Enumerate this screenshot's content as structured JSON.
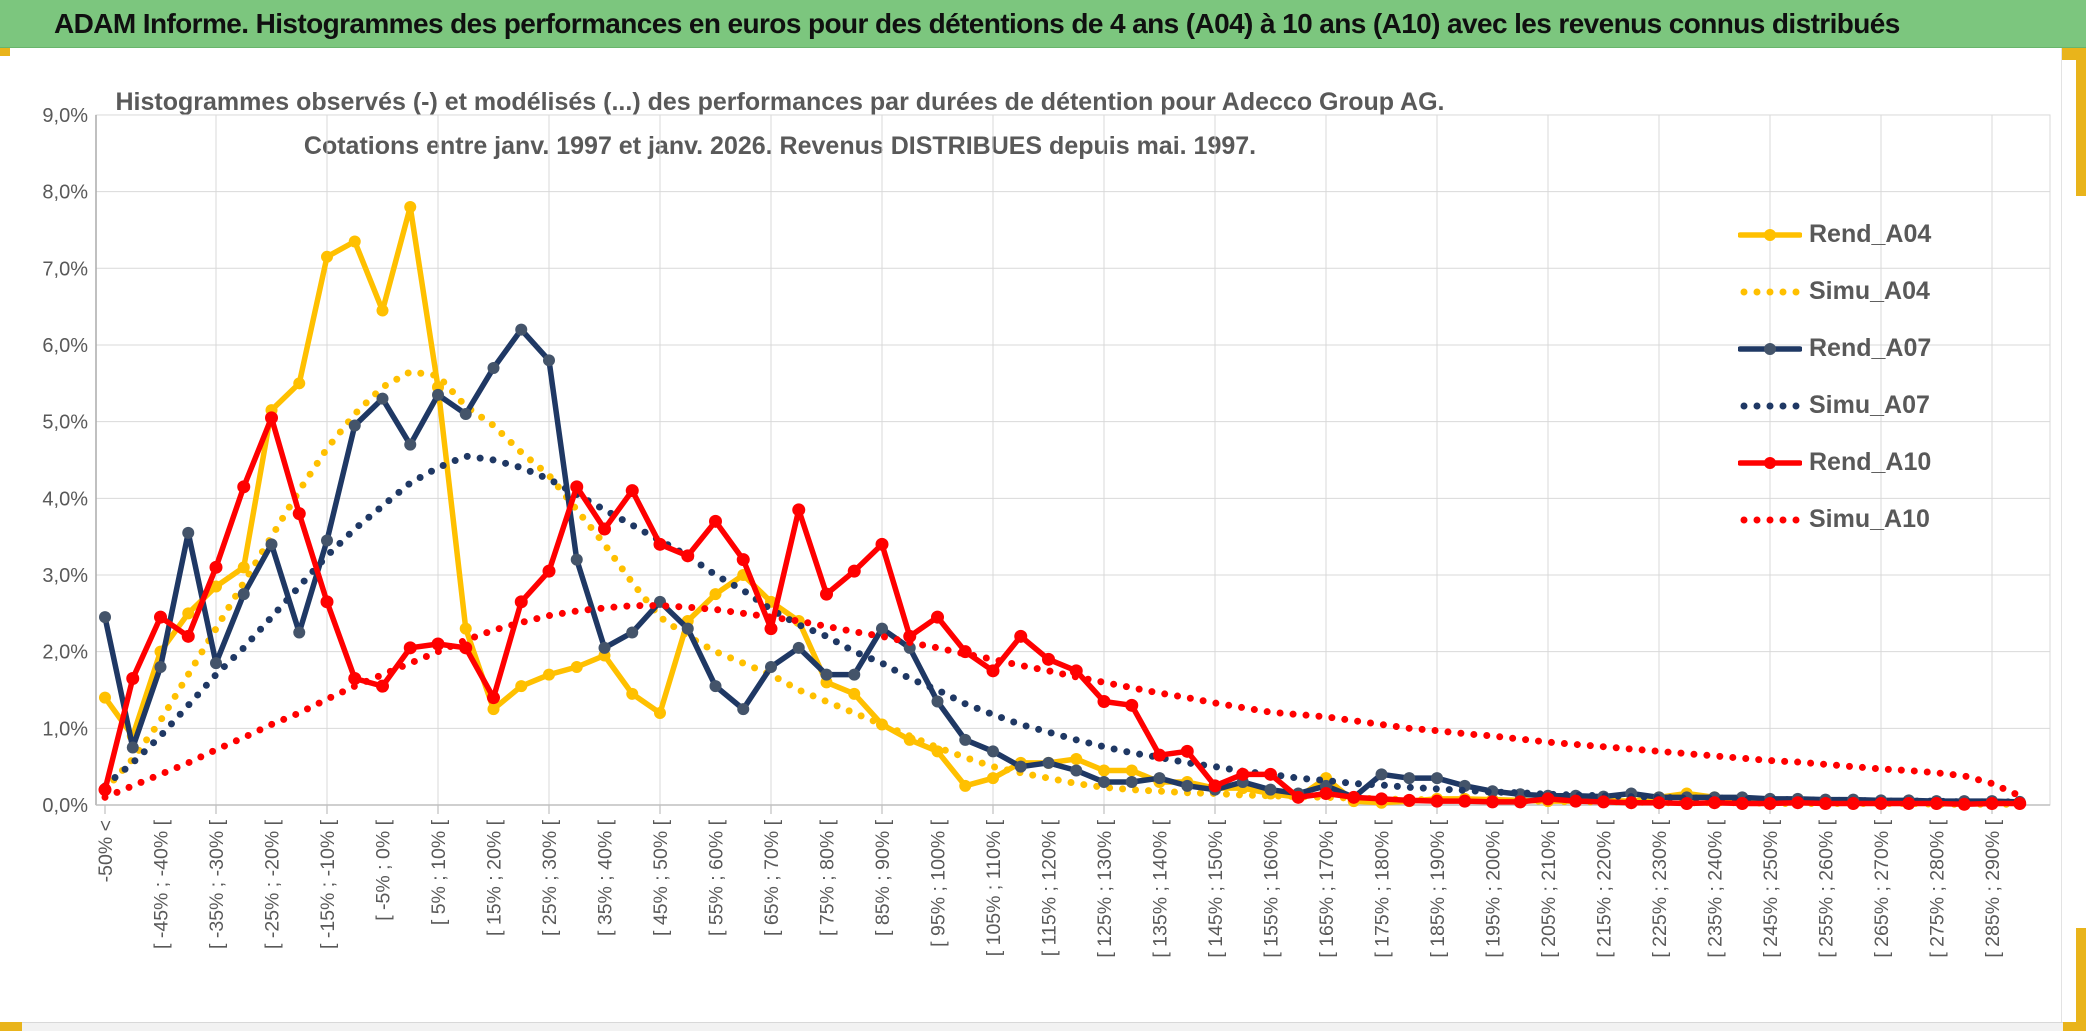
{
  "window": {
    "title": "ADAM Informe. Histogrammes des performances en euros pour des détentions de 4 ans (A04) à 10 ans (A10) avec les revenus connus distribués"
  },
  "chart": {
    "title_line1": "Histogrammes observés (-) et modélisés (...) des performances par durées de détention pour Adecco Group AG.",
    "title_line2": "Cotations entre janv. 1997 et janv. 2026. Revenus DISTRIBUES depuis mai. 1997."
  },
  "colors": {
    "gold": "#FFC000",
    "navy": "#1F3864",
    "navy_marker": "#44546A",
    "red": "#FF0000",
    "grid": "#D9D9D9",
    "axis": "#BFBFBF",
    "text_gray": "#595959",
    "header_green": "#7CC67E",
    "gold_frame": "#E9B41B"
  },
  "chart_data": {
    "type": "line",
    "title": "Histogrammes observés (-) et modélisés (...) des performances par durées de détention pour Adecco Group AG. Cotations entre janv. 1997 et janv. 2026. Revenus DISTRIBUES depuis mai. 1997.",
    "ylabel": "",
    "xlabel": "",
    "ylim": [
      0,
      9
    ],
    "y_unit": "%",
    "grid": true,
    "legend_position": "right",
    "n_bins": 70,
    "x_label_every": 2,
    "y_tick_labels": [
      "0,0%",
      "1,0%",
      "2,0%",
      "3,0%",
      "4,0%",
      "5,0%",
      "6,0%",
      "7,0%",
      "8,0%",
      "9,0%"
    ],
    "x_tick_labels": [
      "-50% <",
      "[ -45% ; -40% [",
      "[ -35% ; -30% [",
      "[ -25% ; -20% [",
      "[ -15% ; -10% [",
      "[ -5% ; 0% [",
      "[ 5% ; 10% [",
      "[ 15% ; 20% [",
      "[ 25% ; 30% [",
      "[ 35% ; 40% [",
      "[ 45% ; 50% [",
      "[ 55% ; 60% [",
      "[ 65% ; 70% [",
      "[ 75% ; 80% [",
      "[ 85% ; 90% [",
      "[ 95% ; 100% [",
      "[ 105% ; 110% [",
      "[ 115% ; 120% [",
      "[ 125% ; 130% [",
      "[ 135% ; 140% [",
      "[ 145% ; 150% [",
      "[ 155% ; 160% [",
      "[ 165% ; 170% [",
      "[ 175% ; 180% [",
      "[ 185% ; 190% [",
      "[ 195% ; 200% [",
      "[ 205% ; 210% [",
      "[ 215% ; 220% [",
      "[ 225% ; 230% [",
      "[ 235% ; 240% [",
      "[ 245% ; 250% [",
      "[ 255% ; 260% [",
      "[ 265% ; 270% [",
      "[ 275% ; 280% [",
      "[ 285% ; 290% ["
    ],
    "series": [
      {
        "name": "Rend_A04",
        "style": "solid",
        "color": "#FFC000",
        "marker_color": "#FFC000",
        "values": [
          1.4,
          0.9,
          2.0,
          2.5,
          2.85,
          3.1,
          5.15,
          5.5,
          7.15,
          7.35,
          6.45,
          7.8,
          5.45,
          2.3,
          1.25,
          1.55,
          1.7,
          1.8,
          1.95,
          1.45,
          1.2,
          2.4,
          2.75,
          3.0,
          2.65,
          2.4,
          1.6,
          1.45,
          1.05,
          0.85,
          0.7,
          0.25,
          0.35,
          0.55,
          0.55,
          0.6,
          0.45,
          0.45,
          0.3,
          0.3,
          0.22,
          0.22,
          0.15,
          0.1,
          0.35,
          0.05,
          0.03,
          0.05,
          0.08,
          0.08,
          0.07,
          0.06,
          0.05,
          0.05,
          0.06,
          0.05,
          0.1,
          0.15,
          0.1,
          0.04,
          0.05,
          0.04,
          0.03,
          0.05,
          0.04,
          0.03,
          0.03,
          0.02,
          0.03,
          0.02
        ]
      },
      {
        "name": "Simu_A04",
        "style": "dotted",
        "color": "#FFC000",
        "values": [
          0.2,
          0.6,
          1.1,
          1.7,
          2.3,
          2.9,
          3.5,
          4.1,
          4.65,
          5.1,
          5.45,
          5.65,
          5.6,
          5.2,
          4.95,
          4.6,
          4.3,
          3.85,
          3.4,
          2.9,
          2.45,
          2.2,
          2.0,
          1.85,
          1.7,
          1.5,
          1.35,
          1.2,
          1.05,
          0.9,
          0.75,
          0.62,
          0.5,
          0.42,
          0.35,
          0.28,
          0.23,
          0.2,
          0.18,
          0.16,
          0.15,
          0.13,
          0.12,
          0.11,
          0.1,
          0.09,
          0.08,
          0.07,
          0.07,
          0.06,
          0.06,
          0.05,
          0.05,
          0.04,
          0.04,
          0.04,
          0.03,
          0.03,
          0.03,
          0.03,
          0.02,
          0.02,
          0.02,
          0.02,
          0.02,
          0.02,
          0.01,
          0.01,
          0.01,
          0.01
        ]
      },
      {
        "name": "Rend_A07",
        "style": "solid",
        "color": "#1F3864",
        "marker_color": "#44546A",
        "values": [
          2.45,
          0.75,
          1.8,
          3.55,
          1.85,
          2.75,
          3.4,
          2.25,
          3.45,
          4.95,
          5.3,
          4.7,
          5.35,
          5.1,
          5.7,
          6.2,
          5.8,
          3.2,
          2.05,
          2.25,
          2.65,
          2.3,
          1.55,
          1.25,
          1.8,
          2.05,
          1.7,
          1.7,
          2.3,
          2.05,
          1.35,
          0.85,
          0.7,
          0.5,
          0.55,
          0.45,
          0.3,
          0.3,
          0.35,
          0.25,
          0.2,
          0.3,
          0.2,
          0.15,
          0.25,
          0.1,
          0.4,
          0.35,
          0.35,
          0.25,
          0.18,
          0.14,
          0.12,
          0.12,
          0.11,
          0.15,
          0.1,
          0.1,
          0.1,
          0.1,
          0.08,
          0.08,
          0.07,
          0.07,
          0.06,
          0.06,
          0.05,
          0.05,
          0.05,
          0.04
        ]
      },
      {
        "name": "Simu_A07",
        "style": "dotted",
        "color": "#1F3864",
        "values": [
          0.25,
          0.55,
          0.9,
          1.3,
          1.7,
          2.05,
          2.45,
          2.85,
          3.25,
          3.6,
          3.9,
          4.2,
          4.4,
          4.55,
          4.5,
          4.4,
          4.25,
          4.05,
          3.85,
          3.65,
          3.45,
          3.25,
          3.0,
          2.8,
          2.55,
          2.35,
          2.2,
          2.0,
          1.85,
          1.65,
          1.5,
          1.32,
          1.18,
          1.05,
          0.95,
          0.85,
          0.76,
          0.68,
          0.62,
          0.55,
          0.5,
          0.44,
          0.4,
          0.35,
          0.32,
          0.28,
          0.26,
          0.23,
          0.21,
          0.19,
          0.17,
          0.16,
          0.14,
          0.13,
          0.12,
          0.11,
          0.1,
          0.09,
          0.09,
          0.08,
          0.07,
          0.07,
          0.06,
          0.06,
          0.05,
          0.05,
          0.05,
          0.04,
          0.04,
          0.04
        ]
      },
      {
        "name": "Rend_A10",
        "style": "solid",
        "color": "#FF0000",
        "marker_color": "#FF0000",
        "values": [
          0.2,
          1.65,
          2.45,
          2.2,
          3.1,
          4.15,
          5.05,
          3.8,
          2.65,
          1.65,
          1.55,
          2.05,
          2.1,
          2.05,
          1.4,
          2.65,
          3.05,
          4.15,
          3.6,
          4.1,
          3.4,
          3.25,
          3.7,
          3.2,
          2.3,
          3.85,
          2.75,
          3.05,
          3.4,
          2.2,
          2.45,
          2.0,
          1.75,
          2.2,
          1.9,
          1.75,
          1.35,
          1.3,
          0.65,
          0.7,
          0.25,
          0.4,
          0.4,
          0.1,
          0.15,
          0.1,
          0.08,
          0.06,
          0.05,
          0.05,
          0.04,
          0.04,
          0.08,
          0.05,
          0.04,
          0.03,
          0.03,
          0.02,
          0.03,
          0.02,
          0.02,
          0.03,
          0.02,
          0.02,
          0.02,
          0.02,
          0.02,
          0.01,
          0.02,
          0.02
        ]
      },
      {
        "name": "Simu_A10",
        "style": "dotted",
        "color": "#FF0000",
        "values": [
          0.1,
          0.25,
          0.4,
          0.55,
          0.72,
          0.88,
          1.05,
          1.2,
          1.38,
          1.55,
          1.7,
          1.85,
          2.0,
          2.15,
          2.28,
          2.38,
          2.47,
          2.53,
          2.57,
          2.6,
          2.6,
          2.58,
          2.55,
          2.5,
          2.45,
          2.4,
          2.33,
          2.26,
          2.2,
          2.12,
          2.05,
          1.97,
          1.9,
          1.82,
          1.75,
          1.67,
          1.6,
          1.53,
          1.46,
          1.4,
          1.33,
          1.27,
          1.21,
          1.18,
          1.15,
          1.1,
          1.05,
          1.0,
          0.97,
          0.93,
          0.9,
          0.86,
          0.82,
          0.79,
          0.76,
          0.73,
          0.7,
          0.67,
          0.64,
          0.61,
          0.58,
          0.56,
          0.53,
          0.5,
          0.47,
          0.45,
          0.42,
          0.38,
          0.28,
          0.12
        ]
      }
    ]
  }
}
